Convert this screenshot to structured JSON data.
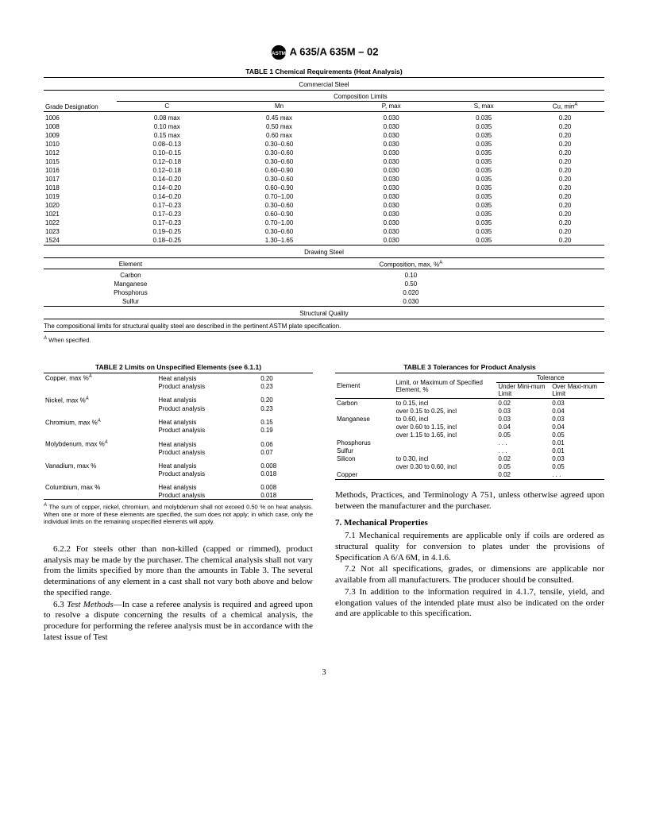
{
  "header": {
    "designation": "A 635/A 635M – 02"
  },
  "table1": {
    "title": "TABLE 1   Chemical Requirements (Heat Analysis)",
    "sub1": "Commercial Steel",
    "grade_label": "Grade Designation",
    "comp_label": "Composition Limits",
    "cols": [
      "C",
      "Mn",
      "P, max",
      "S, max",
      "Cu, min"
    ],
    "cu_sup": "A",
    "rows": [
      [
        "1006",
        "0.08 max",
        "0.45 max",
        "0.030",
        "0.035",
        "0.20"
      ],
      [
        "1008",
        "0.10 max",
        "0.50 max",
        "0.030",
        "0.035",
        "0.20"
      ],
      [
        "1009",
        "0.15 max",
        "0.60 max",
        "0.030",
        "0.035",
        "0.20"
      ],
      [
        "1010",
        "0.08–0.13",
        "0.30–0.60",
        "0.030",
        "0.035",
        "0.20"
      ],
      [
        "1012",
        "0.10–0.15",
        "0.30–0.60",
        "0.030",
        "0.035",
        "0.20"
      ],
      [
        "1015",
        "0.12–0.18",
        "0.30–0.60",
        "0.030",
        "0.035",
        "0.20"
      ],
      [
        "1016",
        "0.12–0.18",
        "0.60–0.90",
        "0.030",
        "0.035",
        "0.20"
      ],
      [
        "1017",
        "0.14–0.20",
        "0.30–0.60",
        "0.030",
        "0.035",
        "0.20"
      ],
      [
        "1018",
        "0.14–0.20",
        "0.60–0.90",
        "0.030",
        "0.035",
        "0.20"
      ],
      [
        "1019",
        "0.14–0.20",
        "0.70–1.00",
        "0.030",
        "0.035",
        "0.20"
      ],
      [
        "1020",
        "0.17–0.23",
        "0.30–0.60",
        "0.030",
        "0.035",
        "0.20"
      ],
      [
        "1021",
        "0.17–0.23",
        "0.60–0.90",
        "0.030",
        "0.035",
        "0.20"
      ],
      [
        "1022",
        "0.17–0.23",
        "0.70–1.00",
        "0.030",
        "0.035",
        "0.20"
      ],
      [
        "1023",
        "0.19–0.25",
        "0.30–0.60",
        "0.030",
        "0.035",
        "0.20"
      ],
      [
        "1524",
        "0.18–0.25",
        "1.30–1.65",
        "0.030",
        "0.035",
        "0.20"
      ]
    ],
    "sub2": "Drawing Steel",
    "ds_cols": [
      "Element",
      "Composition, max, %"
    ],
    "ds_sup": "A",
    "ds_rows": [
      [
        "Carbon",
        "0.10"
      ],
      [
        "Manganese",
        "0.50"
      ],
      [
        "Phosphorus",
        "0.020"
      ],
      [
        "Sulfur",
        "0.030"
      ]
    ],
    "sub3": "Structural Quality",
    "sq_text": "The compositional limits for structural quality steel are described in the pertinent ASTM plate specification.",
    "footnote": "When specified."
  },
  "table2": {
    "title": "TABLE 2   Limits on Unspecified Elements (see 6.1.1)",
    "rows": [
      {
        "k": "Copper, max  %",
        "sup": "A",
        "a": "Heat analysis",
        "v": "0.20",
        "b": "Product analysis",
        "w": "0.23"
      },
      {
        "k": "Nickel, max %",
        "sup": "A",
        "a": "Heat analysis",
        "v": "0.20",
        "b": "Product analysis",
        "w": "0.23"
      },
      {
        "k": "Chromium, max %",
        "sup": "A",
        "a": "Heat analysis",
        "v": "0.15",
        "b": "Product analysis",
        "w": "0.19"
      },
      {
        "k": "Molybdenum, max %",
        "sup": "A",
        "a": "Heat analysis",
        "v": "0.06",
        "b": "Product analysis",
        "w": "0.07"
      },
      {
        "k": "Vanadium, max %",
        "sup": "",
        "a": "Heat analysis",
        "v": "0.008",
        "b": "Product analysis",
        "w": "0.018"
      },
      {
        "k": "Columbium, max %",
        "sup": "",
        "a": "Heat analysis",
        "v": "0.008",
        "b": "Product analysis",
        "w": "0.018"
      }
    ],
    "footnote": "The sum of copper, nickel, chromium, and molybdenum shall not exceed 0.50 % on heat analysis. When one or more of these elements are specified, the sum does not apply; in which case, only the individual limits on the remaining unspecified elements will apply.",
    "sup": "A"
  },
  "table3": {
    "title": "TABLE 3   Tolerances for Product Analysis",
    "h1": "Element",
    "h2": "Limit, or Maximum of Specified Element, %",
    "h3": "Tolerance",
    "h3a": "Under Mini-mum Limit",
    "h3b": "Over Maxi-mum Limit",
    "rows": [
      [
        "Carbon",
        "to 0.15, incl",
        "0.02",
        "0.03"
      ],
      [
        "",
        "over 0.15 to 0.25, incl",
        "0.03",
        "0.04"
      ],
      [
        "Manganese",
        "to 0.60, incl",
        "0.03",
        "0.03"
      ],
      [
        "",
        "over 0.60 to 1.15, incl",
        "0.04",
        "0.04"
      ],
      [
        "",
        "over 1.15 to 1.65, incl",
        "0.05",
        "0.05"
      ],
      [
        "Phosphorus",
        "",
        ". . .",
        "0.01"
      ],
      [
        "Sulfur",
        "",
        ". . .",
        "0.01"
      ],
      [
        "Silicon",
        "to 0.30, incl",
        "0.02",
        "0.03"
      ],
      [
        "",
        "over 0.30 to 0.60, incl",
        "0.05",
        "0.05"
      ],
      [
        "Copper",
        "",
        "0.02",
        ". . ."
      ]
    ]
  },
  "body": {
    "p622": "6.2.2 For steels other than non-killed (capped or rimmed), product analysis may be made by the purchaser. The chemical analysis shall not vary from the limits specified by more than the amounts in Table 3. The several determinations of any element in a cast shall not vary both above and below the specified range.",
    "p63_lead": "6.3 ",
    "p63_ital": "Test Methods",
    "p63_rest": "—In case a referee analysis is required and agreed upon to resolve a dispute concerning the results of a chemical analysis, the procedure for performing the referee analysis must be in accordance with the latest issue of Test",
    "p63_cont": "Methods, Practices, and Terminology A 751, unless otherwise agreed upon between the manufacturer and the purchaser.",
    "s7": "7. Mechanical Properties",
    "p71": "7.1 Mechanical requirements are applicable only if coils are ordered as structural quality for conversion to plates under the provisions of Specification A 6/A 6M, in 4.1.6.",
    "p72": "7.2 Not all specifications, grades, or dimensions are applicable nor available from all manufacturers. The producer should be consulted.",
    "p73": "7.3 In addition to the information required in 4.1.7, tensile, yield, and elongation values of the intended plate must also be indicated on the order and are applicable to this specification."
  },
  "page": "3"
}
